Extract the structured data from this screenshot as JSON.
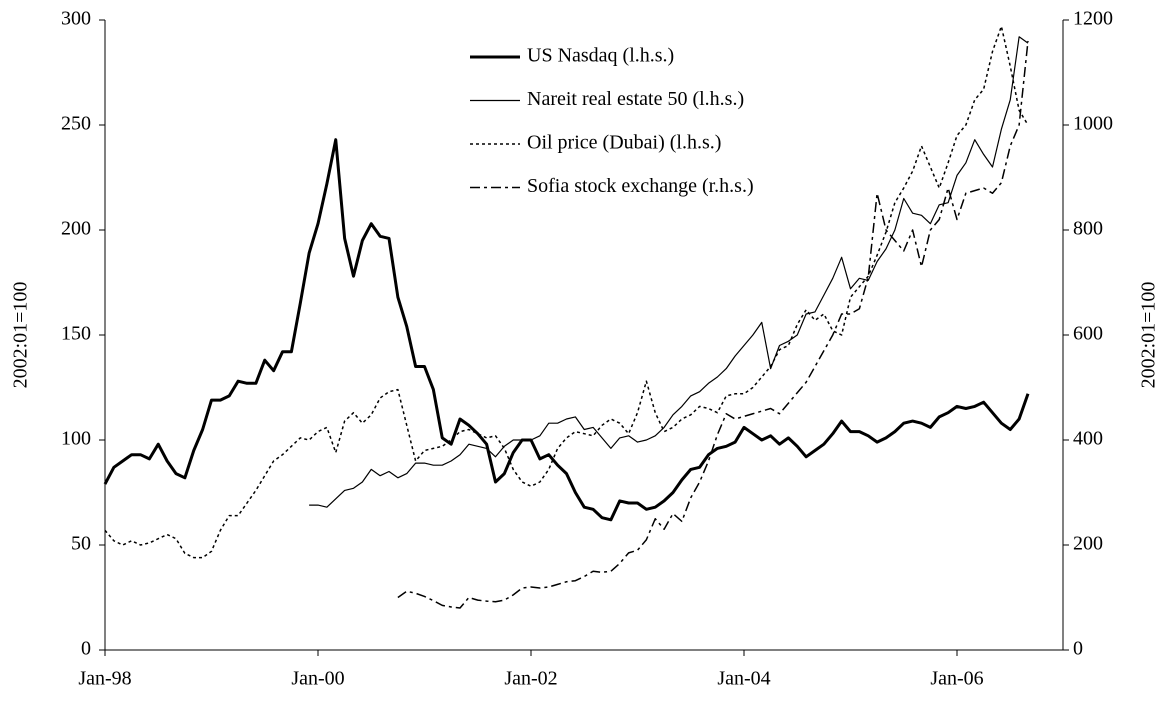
{
  "chart_data": {
    "type": "line",
    "y_label": "2002:01=100",
    "y2_label": "2002:01=100",
    "categories": [
      "Jan-98",
      null,
      null,
      null,
      null,
      null,
      null,
      null,
      null,
      null,
      null,
      null,
      null,
      null,
      null,
      null,
      null,
      null,
      null,
      null,
      null,
      null,
      null,
      null,
      "Jan-00",
      null,
      null,
      null,
      null,
      null,
      null,
      null,
      null,
      null,
      null,
      null,
      null,
      null,
      null,
      null,
      null,
      null,
      null,
      null,
      null,
      null,
      null,
      null,
      "Jan-02",
      null,
      null,
      null,
      null,
      null,
      null,
      null,
      null,
      null,
      null,
      null,
      null,
      null,
      null,
      null,
      null,
      null,
      null,
      null,
      null,
      null,
      null,
      null,
      "Jan-04",
      null,
      null,
      null,
      null,
      null,
      null,
      null,
      null,
      null,
      null,
      null,
      null,
      null,
      null,
      null,
      null,
      null,
      null,
      null,
      null,
      null,
      null,
      null,
      "Jan-06",
      null,
      null,
      null,
      null,
      null,
      null,
      null,
      null
    ],
    "ylim": [
      0,
      300
    ],
    "yticks": [
      0,
      50,
      100,
      150,
      200,
      250,
      300
    ],
    "y2lim": [
      0,
      1200
    ],
    "y2ticks": [
      0,
      200,
      400,
      600,
      800,
      1000,
      1200
    ],
    "legend": "top-center",
    "series": [
      {
        "name": "US Nasdaq (l.h.s.)",
        "color": "#000000",
        "line_style": "thick",
        "values": [
          79,
          87,
          90,
          93,
          93,
          91,
          98,
          90,
          84,
          82,
          95,
          105,
          119,
          119,
          121,
          128,
          127,
          127,
          138,
          133,
          142,
          142,
          165,
          189,
          203,
          222,
          243,
          196,
          178,
          195,
          203,
          197,
          196,
          168,
          154,
          135,
          135,
          124,
          101,
          98,
          110,
          107,
          103,
          98,
          80,
          84,
          94,
          100,
          100,
          91,
          93,
          88,
          84,
          75,
          68,
          67,
          63,
          62,
          71,
          70,
          70,
          67,
          68,
          71,
          75,
          81,
          86,
          87,
          93,
          96,
          97,
          99,
          106,
          103,
          100,
          102,
          98,
          101,
          97,
          92,
          95,
          98,
          103,
          109,
          104,
          104,
          102,
          99,
          101,
          104,
          108,
          109,
          108,
          106,
          111,
          113,
          116,
          115,
          116,
          118,
          113,
          108,
          105,
          110,
          122
        ]
      },
      {
        "name": "Nareit real estate 50 (l.h.s.)",
        "color": "#000000",
        "line_style": "thin",
        "values": [
          null,
          null,
          null,
          null,
          null,
          null,
          null,
          null,
          null,
          null,
          null,
          null,
          null,
          null,
          null,
          null,
          null,
          null,
          null,
          null,
          null,
          null,
          null,
          69,
          69,
          68,
          72,
          76,
          77,
          80,
          86,
          83,
          85,
          82,
          84,
          89,
          89,
          88,
          88,
          90,
          93,
          98,
          97,
          96,
          92,
          97,
          100,
          100,
          100,
          102,
          108,
          108,
          110,
          111,
          105,
          106,
          101,
          96,
          101,
          102,
          99,
          100,
          102,
          106,
          112,
          116,
          121,
          123,
          127,
          130,
          134,
          140,
          145,
          150,
          156,
          134,
          145,
          147,
          150,
          160,
          161,
          169,
          177,
          187,
          172,
          177,
          176,
          185,
          191,
          200,
          215,
          208,
          207,
          203,
          212,
          213,
          226,
          232,
          243,
          236,
          230,
          248,
          262,
          292,
          289
        ]
      },
      {
        "name": "Oil price (Dubai) (l.h.s.)",
        "color": "#000000",
        "line_style": "dotted",
        "values": [
          57,
          52,
          50,
          52,
          50,
          51,
          53,
          55,
          53,
          46,
          44,
          44,
          47,
          57,
          64,
          64,
          70,
          76,
          83,
          90,
          93,
          97,
          101,
          100,
          104,
          106,
          94,
          109,
          113,
          108,
          112,
          120,
          123,
          124,
          107,
          90,
          95,
          96,
          97,
          100,
          104,
          105,
          103,
          101,
          102,
          96,
          86,
          80,
          78,
          80,
          86,
          96,
          101,
          104,
          103,
          102,
          107,
          110,
          108,
          103,
          113,
          128,
          113,
          104,
          106,
          110,
          112,
          116,
          115,
          113,
          121,
          122,
          122,
          125,
          130,
          135,
          143,
          145,
          155,
          162,
          157,
          160,
          152,
          150,
          168,
          173,
          178,
          188,
          199,
          213,
          220,
          228,
          240,
          230,
          220,
          232,
          245,
          250,
          262,
          267,
          285,
          297,
          278,
          257,
          250
        ]
      },
      {
        "name": "Sofia stock exchange (r.h.s.)",
        "color": "#000000",
        "line_style": "dash-dot",
        "axis": "y2",
        "values": [
          null,
          null,
          null,
          null,
          null,
          null,
          null,
          null,
          null,
          null,
          null,
          null,
          null,
          null,
          null,
          null,
          null,
          null,
          null,
          null,
          null,
          null,
          null,
          null,
          null,
          null,
          null,
          null,
          null,
          null,
          null,
          null,
          null,
          100,
          112,
          108,
          102,
          94,
          85,
          82,
          80,
          100,
          95,
          93,
          92,
          95,
          105,
          118,
          120,
          118,
          120,
          125,
          130,
          132,
          140,
          150,
          148,
          150,
          165,
          185,
          190,
          210,
          250,
          230,
          260,
          245,
          290,
          320,
          360,
          410,
          450,
          440,
          445,
          450,
          455,
          460,
          450,
          470,
          490,
          510,
          540,
          570,
          600,
          640,
          640,
          650,
          710,
          870,
          800,
          780,
          760,
          800,
          730,
          800,
          820,
          880,
          820,
          870,
          875,
          880,
          870,
          890,
          960,
          1000,
          1160
        ]
      }
    ]
  }
}
